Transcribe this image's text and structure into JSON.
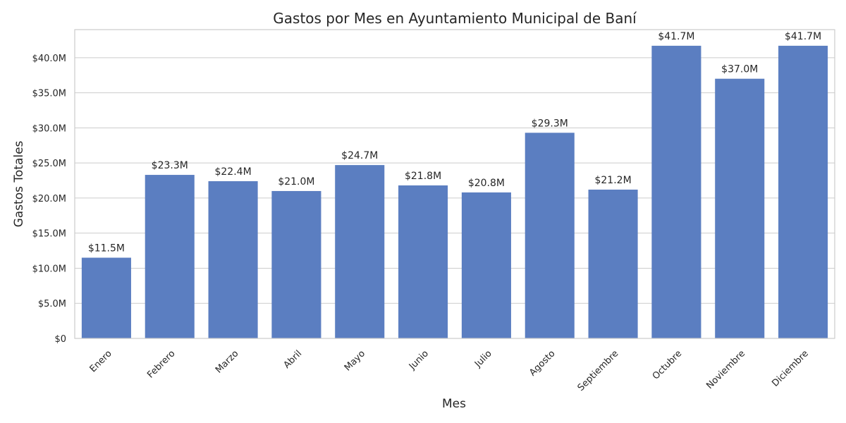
{
  "chart_data": {
    "type": "bar",
    "title": "Gastos por Mes en Ayuntamiento Municipal de Baní",
    "xlabel": "Mes",
    "ylabel": "Gastos Totales",
    "categories": [
      "Enero",
      "Febrero",
      "Marzo",
      "Abril",
      "Mayo",
      "Junio",
      "Julio",
      "Agosto",
      "Septiembre",
      "Octubre",
      "Noviembre",
      "Diciembre"
    ],
    "values": [
      11.5,
      23.3,
      22.4,
      21.0,
      24.7,
      21.8,
      20.8,
      29.3,
      21.2,
      41.7,
      37.0,
      41.7
    ],
    "value_labels": [
      "$11.5M",
      "$23.3M",
      "$22.4M",
      "$21.0M",
      "$24.7M",
      "$21.8M",
      "$20.8M",
      "$29.3M",
      "$21.2M",
      "$41.7M",
      "$37.0M",
      "$41.7M"
    ],
    "value_unit": "millions USD",
    "ylim": [
      0,
      44
    ],
    "yticks": [
      0,
      5,
      10,
      15,
      20,
      25,
      30,
      35,
      40
    ],
    "ytick_labels": [
      "$0",
      "$5.0M",
      "$10.0M",
      "$15.0M",
      "$20.0M",
      "$25.0M",
      "$30.0M",
      "$35.0M",
      "$40.0M"
    ],
    "grid": "horizontal",
    "bar_color": "#5b7ec1"
  }
}
